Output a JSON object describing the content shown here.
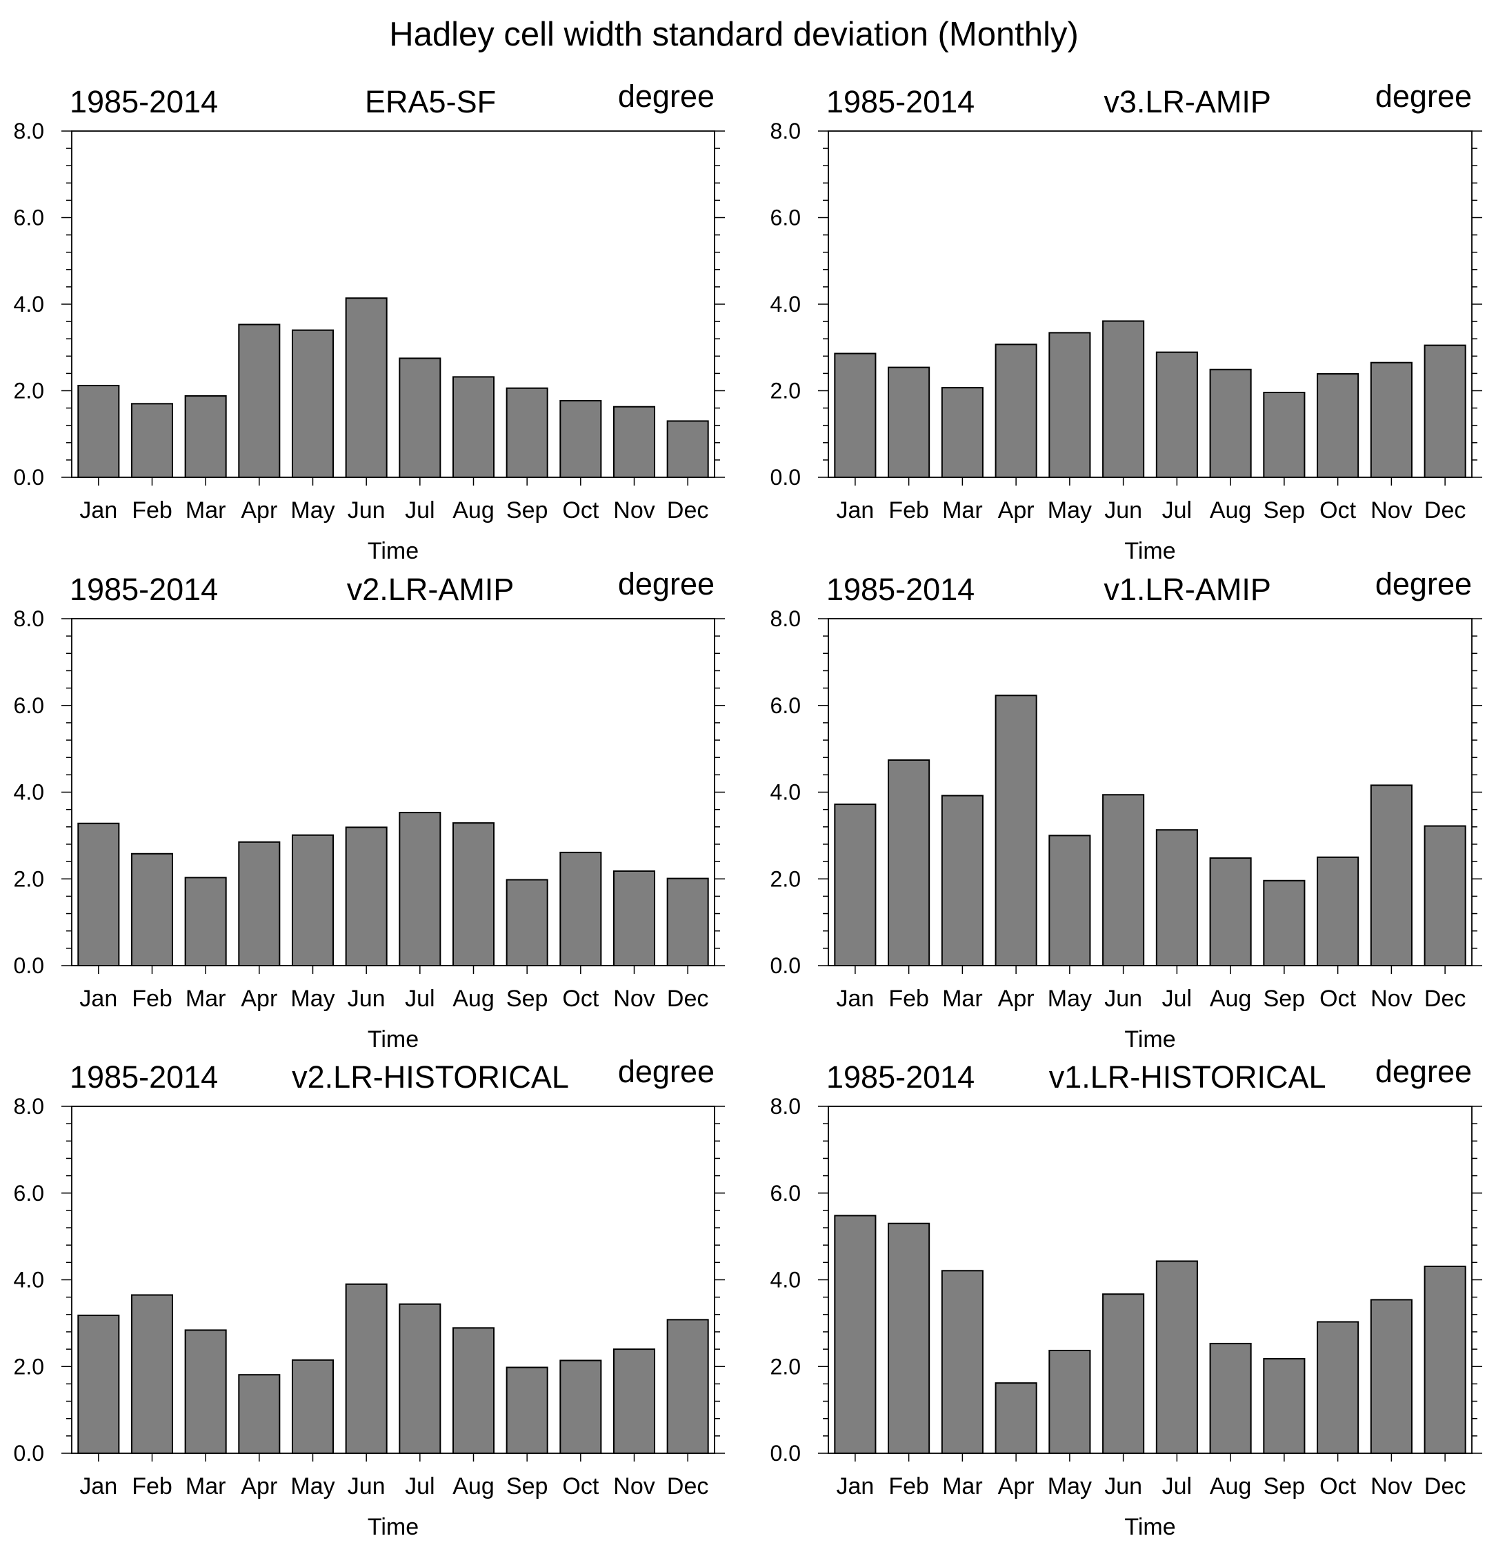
{
  "figure": {
    "title": "Hadley cell width standard deviation (Monthly)"
  },
  "chart_data": [
    {
      "type": "bar",
      "title": "ERA5-SF",
      "left_label": "1985-2014",
      "right_label": "degree",
      "xlabel": "Time",
      "ylabel": "",
      "ylim": [
        0,
        8
      ],
      "yticks": [
        "0.0",
        "2.0",
        "4.0",
        "6.0",
        "8.0"
      ],
      "categories": [
        "Jan",
        "Feb",
        "Mar",
        "Apr",
        "May",
        "Jun",
        "Jul",
        "Aug",
        "Sep",
        "Oct",
        "Nov",
        "Dec"
      ],
      "values": [
        2.12,
        1.7,
        1.88,
        3.53,
        3.4,
        4.14,
        2.75,
        2.32,
        2.06,
        1.77,
        1.63,
        1.3
      ],
      "bar_color": "#7f7f7f",
      "grid": false
    },
    {
      "type": "bar",
      "title": "v3.LR-AMIP",
      "left_label": "1985-2014",
      "right_label": "degree",
      "xlabel": "Time",
      "ylabel": "",
      "ylim": [
        0,
        8
      ],
      "yticks": [
        "0.0",
        "2.0",
        "4.0",
        "6.0",
        "8.0"
      ],
      "categories": [
        "Jan",
        "Feb",
        "Mar",
        "Apr",
        "May",
        "Jun",
        "Jul",
        "Aug",
        "Sep",
        "Oct",
        "Nov",
        "Dec"
      ],
      "values": [
        2.86,
        2.54,
        2.07,
        3.07,
        3.34,
        3.61,
        2.89,
        2.49,
        1.96,
        2.39,
        2.65,
        3.05
      ],
      "bar_color": "#7f7f7f",
      "grid": false
    },
    {
      "type": "bar",
      "title": "v2.LR-AMIP",
      "left_label": "1985-2014",
      "right_label": "degree",
      "xlabel": "Time",
      "ylabel": "",
      "ylim": [
        0,
        8
      ],
      "yticks": [
        "0.0",
        "2.0",
        "4.0",
        "6.0",
        "8.0"
      ],
      "categories": [
        "Jan",
        "Feb",
        "Mar",
        "Apr",
        "May",
        "Jun",
        "Jul",
        "Aug",
        "Sep",
        "Oct",
        "Nov",
        "Dec"
      ],
      "values": [
        3.28,
        2.58,
        2.03,
        2.85,
        3.01,
        3.19,
        3.53,
        3.29,
        1.98,
        2.61,
        2.18,
        2.01
      ],
      "bar_color": "#7f7f7f",
      "grid": false
    },
    {
      "type": "bar",
      "title": "v1.LR-AMIP",
      "left_label": "1985-2014",
      "right_label": "degree",
      "xlabel": "Time",
      "ylabel": "",
      "ylim": [
        0,
        8
      ],
      "yticks": [
        "0.0",
        "2.0",
        "4.0",
        "6.0",
        "8.0"
      ],
      "categories": [
        "Jan",
        "Feb",
        "Mar",
        "Apr",
        "May",
        "Jun",
        "Jul",
        "Aug",
        "Sep",
        "Oct",
        "Nov",
        "Dec"
      ],
      "values": [
        3.72,
        4.74,
        3.92,
        6.23,
        3.0,
        3.94,
        3.13,
        2.48,
        1.96,
        2.5,
        4.16,
        3.22
      ],
      "bar_color": "#7f7f7f",
      "grid": false
    },
    {
      "type": "bar",
      "title": "v2.LR-HISTORICAL",
      "left_label": "1985-2014",
      "right_label": "degree",
      "xlabel": "Time",
      "ylabel": "",
      "ylim": [
        0,
        8
      ],
      "yticks": [
        "0.0",
        "2.0",
        "4.0",
        "6.0",
        "8.0"
      ],
      "categories": [
        "Jan",
        "Feb",
        "Mar",
        "Apr",
        "May",
        "Jun",
        "Jul",
        "Aug",
        "Sep",
        "Oct",
        "Nov",
        "Dec"
      ],
      "values": [
        3.18,
        3.65,
        2.84,
        1.81,
        2.15,
        3.9,
        3.44,
        2.89,
        1.98,
        2.14,
        2.4,
        3.08
      ],
      "bar_color": "#7f7f7f",
      "grid": false
    },
    {
      "type": "bar",
      "title": "v1.LR-HISTORICAL",
      "left_label": "1985-2014",
      "right_label": "degree",
      "xlabel": "Time",
      "ylabel": "",
      "ylim": [
        0,
        8
      ],
      "yticks": [
        "0.0",
        "2.0",
        "4.0",
        "6.0",
        "8.0"
      ],
      "categories": [
        "Jan",
        "Feb",
        "Mar",
        "Apr",
        "May",
        "Jun",
        "Jul",
        "Aug",
        "Sep",
        "Oct",
        "Nov",
        "Dec"
      ],
      "values": [
        5.48,
        5.3,
        4.21,
        1.62,
        2.37,
        3.67,
        4.43,
        2.53,
        2.18,
        3.03,
        3.54,
        4.31
      ],
      "bar_color": "#7f7f7f",
      "grid": false
    }
  ]
}
